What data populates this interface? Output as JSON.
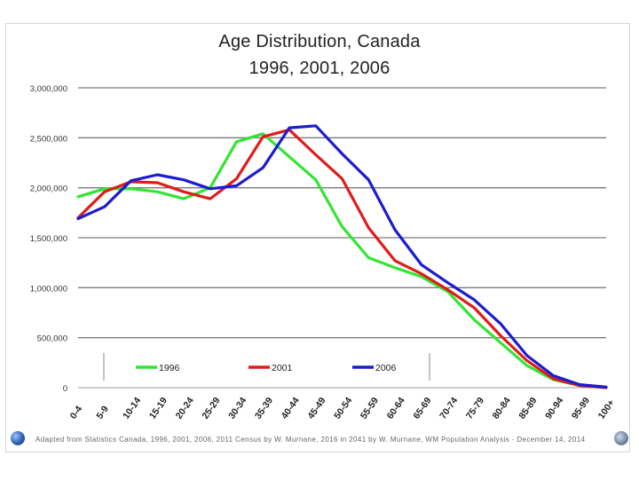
{
  "chart_data": {
    "type": "line",
    "title": [
      "Age Distribution, Canada",
      "1996, 2001, 2006"
    ],
    "xlabel": "",
    "ylabel": "",
    "ylim": [
      0,
      3000000
    ],
    "yticks": [
      0,
      500000,
      1000000,
      1500000,
      2000000,
      2500000,
      3000000
    ],
    "ytick_labels": [
      "0",
      "500,000",
      "1,000,000",
      "1,500,000",
      "2,000,000",
      "2,500,000",
      "3,000,000"
    ],
    "categories": [
      "0-4",
      "5-9",
      "10-14",
      "15-19",
      "20-24",
      "25-29",
      "30-34",
      "35-39",
      "40-44",
      "45-49",
      "50-54",
      "55-59",
      "60-64",
      "65-69",
      "70-74",
      "75-79",
      "80-84",
      "85-89",
      "90-94",
      "95-99",
      "100+"
    ],
    "grid": true,
    "legend_position": "bottom inside",
    "series": [
      {
        "name": "1996",
        "color": "#33e533",
        "values": [
          1910000,
          1990000,
          1990000,
          1960000,
          1890000,
          2000000,
          2460000,
          2540000,
          2310000,
          2080000,
          1610000,
          1300000,
          1200000,
          1110000,
          960000,
          680000,
          450000,
          220000,
          80000,
          20000,
          0
        ]
      },
      {
        "name": "2001",
        "color": "#e01b1b",
        "values": [
          1700000,
          1960000,
          2060000,
          2050000,
          1960000,
          1890000,
          2090000,
          2510000,
          2580000,
          2330000,
          2090000,
          1600000,
          1270000,
          1140000,
          980000,
          800000,
          520000,
          270000,
          90000,
          20000,
          0
        ]
      },
      {
        "name": "2006",
        "color": "#1c1ccf",
        "values": [
          1690000,
          1810000,
          2070000,
          2130000,
          2080000,
          1990000,
          2020000,
          2200000,
          2600000,
          2620000,
          2340000,
          2080000,
          1580000,
          1230000,
          1050000,
          880000,
          640000,
          320000,
          120000,
          30000,
          5000
        ]
      }
    ]
  },
  "footer": {
    "source": "Adapted from Statistics Canada, 1996, 2001, 2006, 2011 Census by W. Murnane, 2016 in 2041 by W. Murnane, WM Population Analysis  ·  December 14, 2014"
  }
}
